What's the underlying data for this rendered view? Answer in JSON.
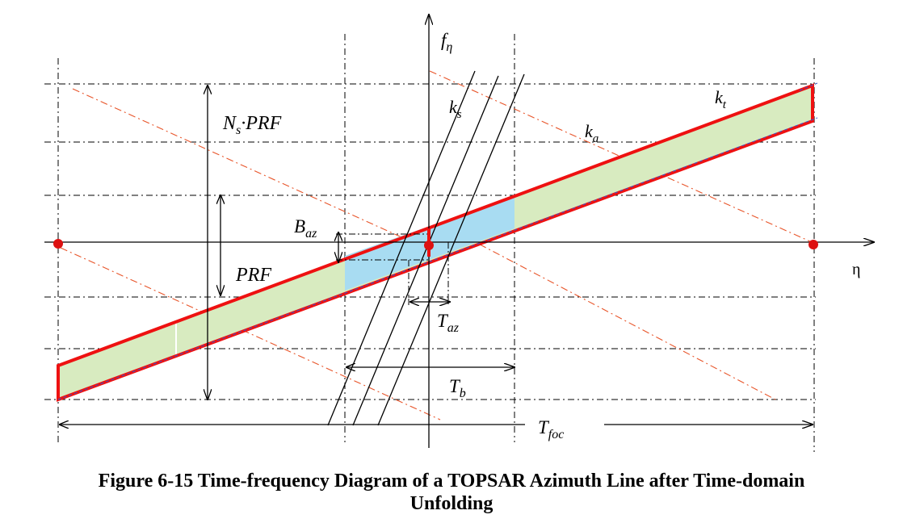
{
  "labels": {
    "f_eta": {
      "main": "f",
      "sub": "η"
    },
    "eta": "η",
    "k_t": {
      "main": "k",
      "sub": "t"
    },
    "k_s": {
      "main": "k",
      "sub": "s"
    },
    "k_a": {
      "main": "k",
      "sub": "a"
    },
    "ns_prf": {
      "main": "N",
      "sub": "s",
      "rest": "·PRF"
    },
    "prf": "PRF",
    "b_az": {
      "main": "B",
      "sub": "az"
    },
    "t_az": {
      "main": "T",
      "sub": "az"
    },
    "t_b": {
      "main": "T",
      "sub": "b"
    },
    "t_foc": {
      "main": "T",
      "sub": "foc"
    }
  },
  "caption": {
    "line1": "Figure 6-15   Time-frequency Diagram of a TOPSAR Azimuth Line after Time-domain",
    "line2": "Unfolding"
  },
  "colors": {
    "band_outline": "#ee1111",
    "band_fill": "#d8ebc0",
    "burst_fill": "#a8dcf2",
    "aliased_line": "#e8552a",
    "marker": "#dd1111",
    "axis": "#000000"
  }
}
